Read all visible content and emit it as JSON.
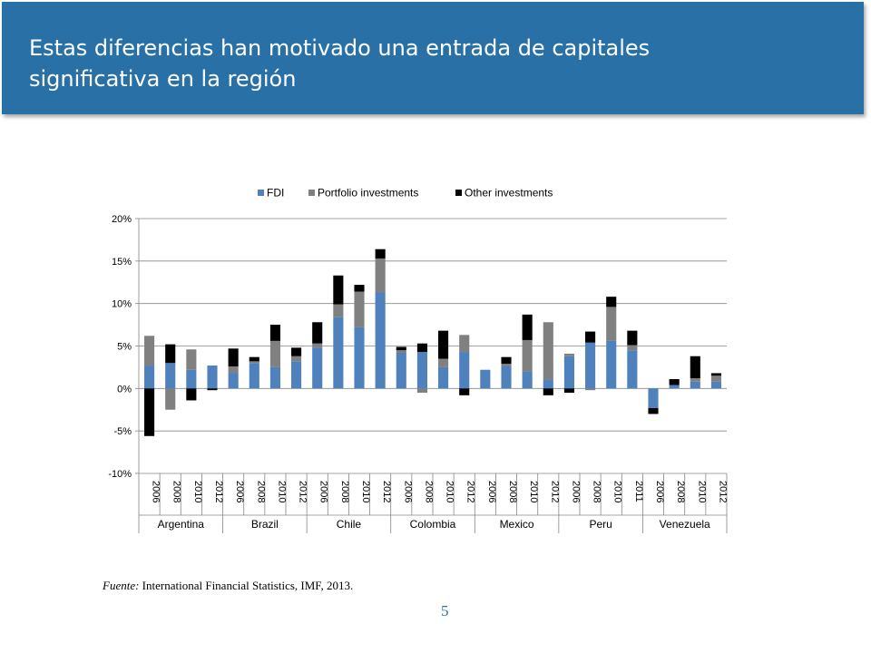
{
  "slide": {
    "title_line1": "Estas diferencias han motivado una entrada de capitales",
    "title_line2": "significativa en la región",
    "source_label": "Fuente:",
    "source_text": "International Financial Statistics, IMF, 2013.",
    "page_number": "5",
    "accent_color": "#2870a6"
  },
  "chart_data": {
    "type": "bar",
    "stacked": true,
    "title": "",
    "xlabel": "",
    "ylabel": "",
    "ylim": [
      -0.1,
      0.2
    ],
    "yticks": [
      -0.1,
      -0.05,
      0.0,
      0.05,
      0.1,
      0.15,
      0.2
    ],
    "ytick_labels": [
      "-10%",
      "-5%",
      "0%",
      "5%",
      "10%",
      "15%",
      "20%"
    ],
    "grid": true,
    "legend_position": "top",
    "groups": [
      {
        "name": "Argentina",
        "years": [
          "2006",
          "2008",
          "2010",
          "2012"
        ]
      },
      {
        "name": "Brazil",
        "years": [
          "2006",
          "2008",
          "2010",
          "2012"
        ]
      },
      {
        "name": "Chile",
        "years": [
          "2006",
          "2008",
          "2010",
          "2012"
        ]
      },
      {
        "name": "Colombia",
        "years": [
          "2006",
          "2008",
          "2010",
          "2012"
        ]
      },
      {
        "name": "Mexico",
        "years": [
          "2006",
          "2008",
          "2010",
          "2012"
        ]
      },
      {
        "name": "Peru",
        "years": [
          "2006",
          "2008",
          "2010",
          "2011"
        ]
      },
      {
        "name": "Venezuela",
        "years": [
          "2006",
          "2008",
          "2010",
          "2012"
        ]
      }
    ],
    "series": [
      {
        "name": "FDI",
        "color": "#4f81bd",
        "values": [
          0.027,
          0.03,
          0.022,
          0.027,
          0.018,
          0.03,
          0.025,
          0.032,
          0.048,
          0.084,
          0.072,
          0.113,
          0.042,
          0.043,
          0.025,
          0.043,
          0.022,
          0.026,
          0.02,
          0.01,
          0.038,
          0.054,
          0.056,
          0.045,
          -0.023,
          0.004,
          0.008,
          0.008
        ]
      },
      {
        "name": "Portfolio investments",
        "color": "#808080",
        "values": [
          0.035,
          -0.025,
          0.024,
          0.0,
          0.008,
          0.002,
          0.031,
          0.006,
          0.005,
          0.015,
          0.042,
          0.04,
          0.003,
          -0.005,
          0.01,
          0.02,
          0.0,
          0.003,
          0.037,
          0.068,
          0.003,
          -0.002,
          0.04,
          0.006,
          0.0,
          0.0,
          0.004,
          0.007
        ]
      },
      {
        "name": "Other investments",
        "color": "#000000",
        "values": [
          -0.056,
          0.022,
          -0.014,
          -0.002,
          0.021,
          0.005,
          0.019,
          0.01,
          0.025,
          0.034,
          0.008,
          0.011,
          0.004,
          0.01,
          0.033,
          -0.008,
          0.0,
          0.008,
          0.03,
          -0.008,
          -0.005,
          0.013,
          0.012,
          0.017,
          -0.007,
          0.007,
          0.026,
          0.003
        ]
      }
    ]
  }
}
